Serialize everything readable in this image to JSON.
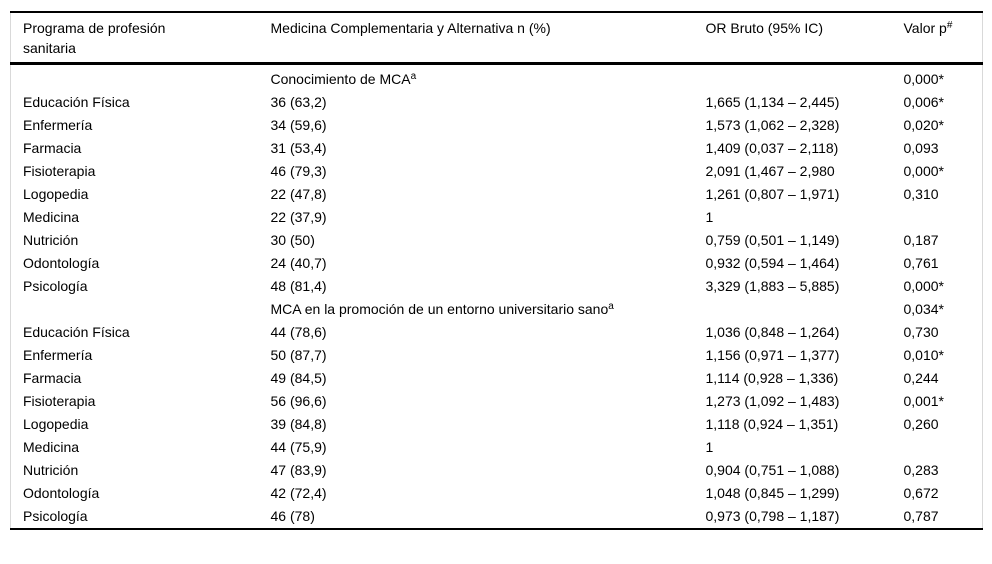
{
  "table": {
    "headers": [
      "Programa de profesión sanitaria",
      "Medicina Complementaria y Alternativa n (%)",
      "OR Bruto (95% IC)",
      "Valor p"
    ],
    "header_footnote_marker": "#",
    "sections": [
      {
        "subheader": "Conocimiento de MCA",
        "subheader_footnote_marker": "a",
        "subheader_p": "0,000*",
        "rows": [
          {
            "program": "Educación Física",
            "n_pct": "36 (63,2)",
            "or": "1,665 (1,134 – 2,445)",
            "p": "0,006*"
          },
          {
            "program": "Enfermería",
            "n_pct": "34 (59,6)",
            "or": "1,573 (1,062 – 2,328)",
            "p": "0,020*"
          },
          {
            "program": "Farmacia",
            "n_pct": "31 (53,4)",
            "or": "1,409 (0,037 – 2,118)",
            "p": "0,093"
          },
          {
            "program": "Fisioterapia",
            "n_pct": "46 (79,3)",
            "or": "2,091 (1,467 – 2,980",
            "p": "0,000*"
          },
          {
            "program": "Logopedia",
            "n_pct": "22 (47,8)",
            "or": "1,261 (0,807 – 1,971)",
            "p": "0,310"
          },
          {
            "program": "Medicina",
            "n_pct": "22 (37,9)",
            "or": "1",
            "p": ""
          },
          {
            "program": "Nutrición",
            "n_pct": "30 (50)",
            "or": "0,759 (0,501 – 1,149)",
            "p": "0,187"
          },
          {
            "program": "Odontología",
            "n_pct": "24 (40,7)",
            "or": "0,932 (0,594 – 1,464)",
            "p": "0,761"
          },
          {
            "program": "Psicología",
            "n_pct": "48 (81,4)",
            "or": "3,329 (1,883 – 5,885)",
            "p": "0,000*"
          }
        ]
      },
      {
        "subheader": "MCA en la promoción de un entorno universitario sano",
        "subheader_footnote_marker": "a",
        "subheader_p": "0,034*",
        "rows": [
          {
            "program": "Educación Física",
            "n_pct": "44 (78,6)",
            "or": "1,036 (0,848 – 1,264)",
            "p": "0,730"
          },
          {
            "program": "Enfermería",
            "n_pct": "50 (87,7)",
            "or": "1,156 (0,971 – 1,377)",
            "p": "0,010*"
          },
          {
            "program": "Farmacia",
            "n_pct": "49 (84,5)",
            "or": "1,114 (0,928 – 1,336)",
            "p": "0,244"
          },
          {
            "program": "Fisioterapia",
            "n_pct": "56 (96,6)",
            "or": "1,273 (1,092 – 1,483)",
            "p": "0,001*"
          },
          {
            "program": "Logopedia",
            "n_pct": "39 (84,8)",
            "or": "1,118 (0,924 – 1,351)",
            "p": "0,260"
          },
          {
            "program": "Medicina",
            "n_pct": "44 (75,9)",
            "or": "1",
            "p": ""
          },
          {
            "program": "Nutrición",
            "n_pct": "47 (83,9)",
            "or": "0,904 (0,751 – 1,088)",
            "p": "0,283"
          },
          {
            "program": "Odontología",
            "n_pct": "42 (72,4)",
            "or": "1,048 (0,845 – 1,299)",
            "p": "0,672"
          },
          {
            "program": "Psicología",
            "n_pct": "46 (78)",
            "or": "0,973 (0,798 – 1,187)",
            "p": "0,787"
          }
        ]
      }
    ]
  }
}
